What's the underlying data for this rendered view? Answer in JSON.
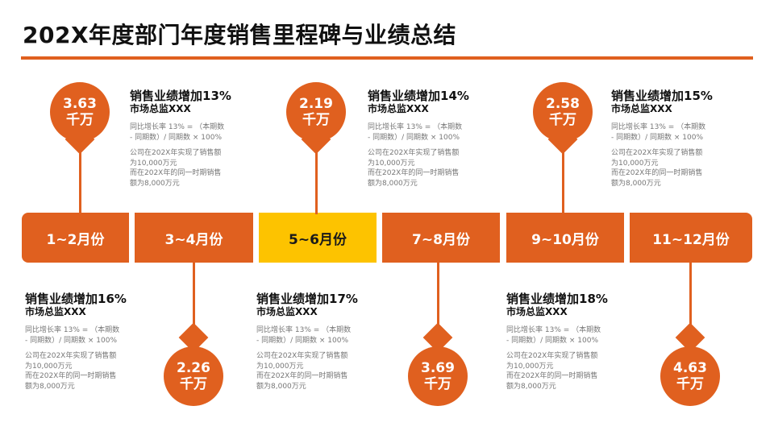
{
  "title": "202X年度部门年度销售里程碑与业绩总结",
  "colors": {
    "accent": "#E0601F",
    "highlight": "#FDC300",
    "text": "#111111",
    "muted": "#777777"
  },
  "timeline": [
    {
      "label": "1~2月份",
      "active": false
    },
    {
      "label": "3~4月份",
      "active": false
    },
    {
      "label": "5~6月份",
      "active": true
    },
    {
      "label": "7~8月份",
      "active": false
    },
    {
      "label": "9~10月份",
      "active": false
    },
    {
      "label": "11~12月份",
      "active": false
    }
  ],
  "milestones_top": [
    {
      "value": "3.63",
      "unit": "千万",
      "heading": "销售业绩增加13%",
      "sub": "市场总监XXX",
      "formula": "同比增长率 13% = （本期数\n- 同期数）/ 同期数 × 100%",
      "desc": "公司在202X年实现了销售额\n为10,000万元\n而在202X年的同一时期销售\n额为8,000万元"
    },
    {
      "value": "2.19",
      "unit": "千万",
      "heading": "销售业绩增加14%",
      "sub": "市场总监XXX",
      "formula": "同比增长率 13% = （本期数\n- 同期数）/ 同期数 × 100%",
      "desc": "公司在202X年实现了销售额\n为10,000万元\n而在202X年的同一时期销售\n额为8,000万元"
    },
    {
      "value": "2.58",
      "unit": "千万",
      "heading": "销售业绩增加15%",
      "sub": "市场总监XXX",
      "formula": "同比增长率 13% = （本期数\n- 同期数）/ 同期数 × 100%",
      "desc": "公司在202X年实现了销售额\n为10,000万元\n而在202X年的同一时期销售\n额为8,000万元"
    }
  ],
  "milestones_bottom": [
    {
      "value": "2.26",
      "unit": "千万",
      "heading": "销售业绩增加16%",
      "sub": "市场总监XXX",
      "formula": "同比增长率 13% = （本期数\n- 同期数）/ 同期数 × 100%",
      "desc": "公司在202X年实现了销售额\n为10,000万元\n而在202X年的同一时期销售\n额为8,000万元"
    },
    {
      "value": "3.69",
      "unit": "千万",
      "heading": "销售业绩增加17%",
      "sub": "市场总监XXX",
      "formula": "同比增长率 13% = （本期数\n- 同期数）/ 同期数 × 100%",
      "desc": "公司在202X年实现了销售额\n为10,000万元\n而在202X年的同一时期销售\n额为8,000万元"
    },
    {
      "value": "4.63",
      "unit": "千万",
      "heading": "销售业绩增加18%",
      "sub": "市场总监XXX",
      "formula": "同比增长率 13% = （本期数\n- 同期数）/ 同期数 × 100%",
      "desc": "公司在202X年实现了销售额\n为10,000万元\n而在202X年的同一时期销售\n额为8,000万元"
    }
  ]
}
